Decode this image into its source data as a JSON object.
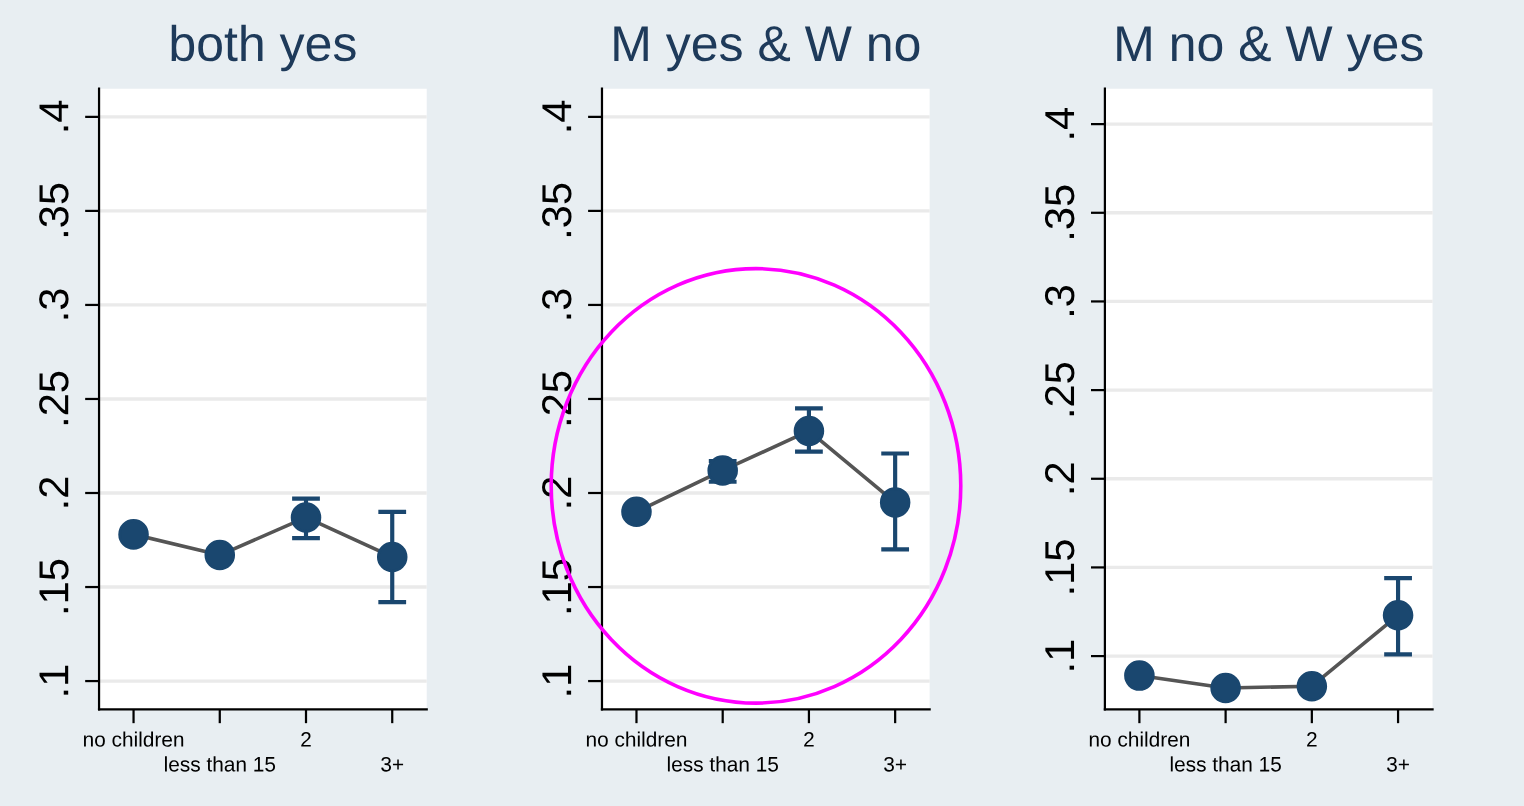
{
  "chart_data": [
    {
      "type": "line",
      "title": "both yes",
      "categories": [
        "no children",
        "less than 15",
        "2",
        "3+"
      ],
      "series": [
        {
          "color": "#1a476f",
          "values": [
            0.178,
            0.167,
            0.187,
            0.166
          ],
          "errors": [
            null,
            null,
            [
              0.176,
              0.197
            ],
            [
              0.142,
              0.19
            ]
          ]
        }
      ],
      "ylim": [
        0.085,
        0.415
      ],
      "yticks": [
        {
          "value": 0.1,
          "label": ".1"
        },
        {
          "value": 0.15,
          "label": ".15"
        },
        {
          "value": 0.2,
          "label": ".2"
        },
        {
          "value": 0.25,
          "label": ".25"
        },
        {
          "value": 0.3,
          "label": ".3"
        },
        {
          "value": 0.35,
          "label": ".35"
        },
        {
          "value": 0.4,
          "label": ".4"
        }
      ],
      "grid": "y",
      "marker": "circle",
      "line_style": "solid"
    },
    {
      "type": "line",
      "title": "M yes & W no",
      "categories": [
        "no children",
        "less than 15",
        "2",
        "3+"
      ],
      "series": [
        {
          "color": "#1a476f",
          "values": [
            0.19,
            0.212,
            0.233,
            0.195
          ],
          "errors": [
            null,
            [
              0.206,
              0.217
            ],
            [
              0.222,
              0.245
            ],
            [
              0.17,
              0.221
            ]
          ]
        }
      ],
      "ylim": [
        0.085,
        0.415
      ],
      "yticks": [
        {
          "value": 0.1,
          "label": ".1"
        },
        {
          "value": 0.15,
          "label": ".15"
        },
        {
          "value": 0.2,
          "label": ".2"
        },
        {
          "value": 0.25,
          "label": ".25"
        },
        {
          "value": 0.3,
          "label": ".3"
        },
        {
          "value": 0.35,
          "label": ".35"
        },
        {
          "value": 0.4,
          "label": ".4"
        }
      ],
      "grid": "y",
      "marker": "circle",
      "line_style": "solid"
    },
    {
      "type": "line",
      "title": "M no & W yes",
      "categories": [
        "no children",
        "less than 15",
        "2",
        "3+"
      ],
      "series": [
        {
          "color": "#1a476f",
          "values": [
            0.089,
            0.082,
            0.083,
            0.123
          ],
          "errors": [
            null,
            null,
            null,
            [
              0.101,
              0.144
            ]
          ]
        }
      ],
      "ylim": [
        0.07,
        0.42
      ],
      "yticks": [
        {
          "value": 0.1,
          "label": ".1"
        },
        {
          "value": 0.15,
          "label": ".15"
        },
        {
          "value": 0.2,
          "label": ".2"
        },
        {
          "value": 0.25,
          "label": ".25"
        },
        {
          "value": 0.3,
          "label": ".3"
        },
        {
          "value": 0.35,
          "label": ".35"
        },
        {
          "value": 0.4,
          "label": ".4"
        }
      ],
      "grid": "y",
      "marker": "circle",
      "line_style": "solid"
    }
  ]
}
